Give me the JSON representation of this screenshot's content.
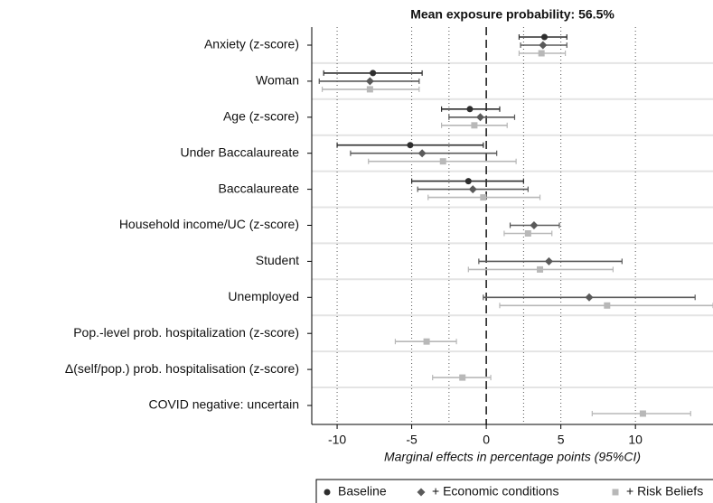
{
  "chart_data": {
    "type": "coefplot",
    "title": "Mean exposure probability: 56.5%",
    "x_label": "Marginal effects in percentage points (95%CI)",
    "categories": [
      "Anxiety (z-score)",
      "Woman",
      "Age (z-score)",
      "Under Baccalaureate",
      "Baccalaureate",
      "Household income/UC (z-score)",
      "Student",
      "Unemployed",
      "Pop.-level prob. hospitalization (z-score)",
      "Δ(self/pop.) prob. hospitalisation (z-score)",
      "COVID negative: uncertain"
    ],
    "xlim": [
      -11.7,
      15.2
    ],
    "xticks": [
      -10,
      -5,
      0,
      5,
      10
    ],
    "reference_lines": [
      -10,
      -5,
      -2.5,
      2.5,
      5,
      10
    ],
    "zero_line": 0,
    "series": [
      {
        "name": "Baseline",
        "color": "#2e2e2e",
        "marker": "circle",
        "values": [
          3.9,
          -7.6,
          -1.1,
          -5.1,
          -1.2,
          null,
          null,
          null,
          null,
          null,
          null
        ],
        "lower": [
          2.2,
          -10.9,
          -3.0,
          -10.0,
          -5.0,
          null,
          null,
          null,
          null,
          null,
          null
        ],
        "upper": [
          5.4,
          -4.3,
          0.9,
          -0.2,
          2.5,
          null,
          null,
          null,
          null,
          null,
          null
        ]
      },
      {
        "name": "+ Economic conditions",
        "color": "#5a5a5a",
        "marker": "diamond",
        "values": [
          3.8,
          -7.8,
          -0.4,
          -4.3,
          -0.9,
          3.2,
          4.2,
          6.9,
          null,
          null,
          null
        ],
        "lower": [
          2.3,
          -11.2,
          -2.5,
          -9.1,
          -4.6,
          1.6,
          -0.5,
          -0.2,
          null,
          null,
          null
        ],
        "upper": [
          5.4,
          -4.5,
          1.9,
          0.7,
          2.8,
          4.9,
          9.1,
          14.0,
          null,
          null,
          null
        ]
      },
      {
        "name": "+ Risk Beliefs",
        "color": "#b8b8b8",
        "marker": "square",
        "values": [
          3.7,
          -7.8,
          -0.8,
          -2.9,
          -0.2,
          2.8,
          3.6,
          8.1,
          -4.0,
          -1.6,
          10.5
        ],
        "lower": [
          2.2,
          -11.0,
          -3.0,
          -7.9,
          -3.9,
          1.2,
          -1.2,
          0.9,
          -6.1,
          -3.6,
          7.1
        ],
        "upper": [
          5.3,
          -4.5,
          1.4,
          2.0,
          3.6,
          4.4,
          8.5,
          15.2,
          -2.0,
          0.3,
          13.7
        ]
      }
    ]
  }
}
